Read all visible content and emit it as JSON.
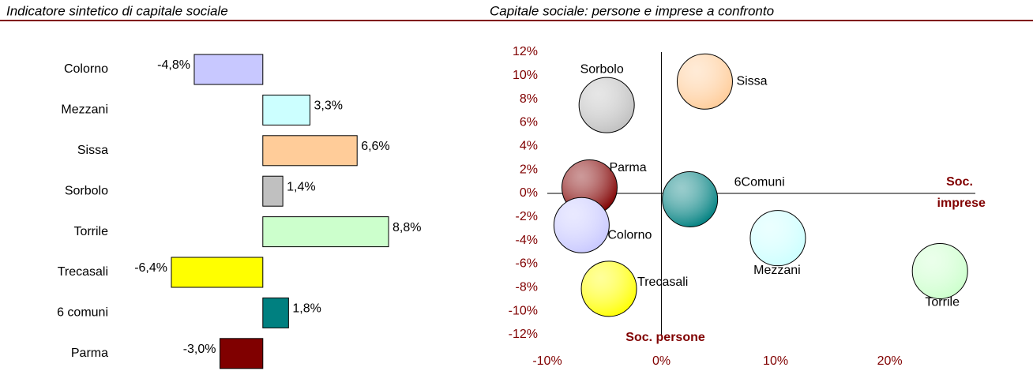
{
  "chart_data": [
    {
      "type": "hbar",
      "title": "Indicatore sintetico di capitale sociale",
      "categories": [
        "Colorno",
        "Mezzani",
        "Sissa",
        "Sorbolo",
        "Torrile",
        "Trecasali",
        "6 comuni",
        "Parma"
      ],
      "values": [
        -4.8,
        3.3,
        6.6,
        1.4,
        8.8,
        -6.4,
        1.8,
        -3.0
      ],
      "value_labels": [
        "-4,8%",
        "3,3%",
        "6,6%",
        "1,4%",
        "8,8%",
        "-6,4%",
        "1,8%",
        "-3,0%"
      ],
      "colors": [
        "#c8c8ff",
        "#ccffff",
        "#ffcc99",
        "#c0c0c0",
        "#ccffcc",
        "#ffff00",
        "#008080",
        "#800000"
      ]
    },
    {
      "type": "bubble",
      "title": "Capitale sociale: persone e imprese a confronto",
      "labels": [
        "Sorbolo",
        "Sissa",
        "Parma",
        "6Comuni",
        "Colorno",
        "Mezzani",
        "Torrile",
        "Trecasali"
      ],
      "x": [
        -4.8,
        3.8,
        -6.3,
        2.5,
        -7.0,
        10.2,
        24.4,
        -4.6
      ],
      "y": [
        7.5,
        9.5,
        0.5,
        -0.5,
        -2.7,
        -3.8,
        -6.6,
        -8.1
      ],
      "colors": [
        "#c0c0c0",
        "#ffcc99",
        "#800000",
        "#008080",
        "#c8c8ff",
        "#ccffff",
        "#ccffcc",
        "#ffff00"
      ],
      "x_label": "Soc. persone",
      "y_label": "Soc. imprese",
      "xlim": [
        -10,
        27.5
      ],
      "xticks": [
        {
          "value": -10,
          "label": "-10%"
        },
        {
          "value": 0,
          "label": "0%"
        },
        {
          "value": 10,
          "label": "10%"
        },
        {
          "value": 20,
          "label": "20%"
        }
      ],
      "ylim": [
        -12,
        12
      ],
      "yticks": [
        {
          "value": 12,
          "label": "12%"
        },
        {
          "value": 10,
          "label": "10%"
        },
        {
          "value": 8,
          "label": "8%"
        },
        {
          "value": 6,
          "label": "6%"
        },
        {
          "value": 4,
          "label": "4%"
        },
        {
          "value": 2,
          "label": "2%"
        },
        {
          "value": 0,
          "label": "0%"
        },
        {
          "value": -2,
          "label": "-2%"
        },
        {
          "value": -4,
          "label": "-4%"
        },
        {
          "value": -6,
          "label": "-6%"
        },
        {
          "value": -8,
          "label": "-8%"
        },
        {
          "value": -10,
          "label": "-10%"
        },
        {
          "value": -12,
          "label": "-12%"
        }
      ]
    }
  ]
}
